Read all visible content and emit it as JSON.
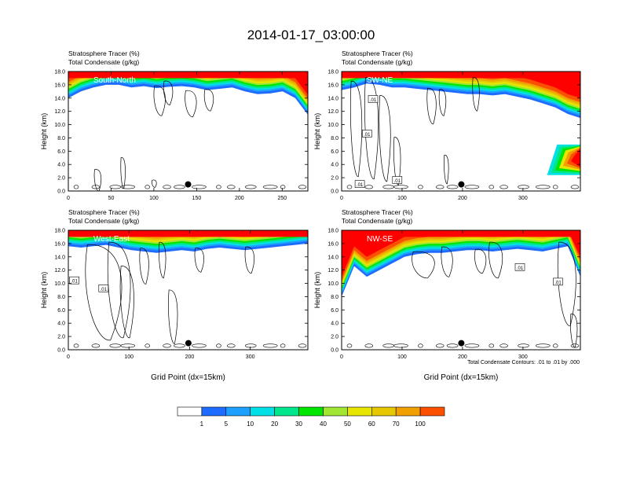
{
  "title": "2014-01-17_03:00:00",
  "panel_labels": [
    "Stratosphere Tracer   (%)",
    "Total Condensate   (g/kg)"
  ],
  "colors": {
    "levels": [
      "#ffffff",
      "#1e6cff",
      "#1ea0ff",
      "#00e0e6",
      "#00e68c",
      "#00e600",
      "#a0e632",
      "#e6e600",
      "#e6c800",
      "#f0a000",
      "#fa5000",
      "#ff0000"
    ],
    "contour": "#000000",
    "marker": "#000000"
  },
  "chart_data": [
    {
      "type": "heatmap",
      "title": "South-North",
      "ylabel": "Height (km)",
      "xlabel": "",
      "x_ticks": [
        "0",
        "50",
        "100",
        "150",
        "200",
        "250"
      ],
      "xlim": [
        0,
        280
      ],
      "y_ticks": [
        "0.0",
        "2.0",
        "4.0",
        "6.0",
        "8.0",
        "10.0",
        "12.0",
        "14.0",
        "16.0",
        "18.0"
      ],
      "ylim": [
        0,
        18
      ],
      "contour_labels": [],
      "marker": {
        "x": 140,
        "y": 1.0
      },
      "tracer_base_km": [
        14.0,
        15.0,
        15.6,
        16.0,
        16.0,
        15.6,
        15.8,
        15.5,
        15.7,
        15.8,
        15.6,
        15.2,
        15.4,
        15.6,
        15.0,
        14.6,
        14.7,
        15.0,
        14.0,
        11.5
      ],
      "tropo_tracer_plume": null
    },
    {
      "type": "heatmap",
      "title": "SW-NE",
      "ylabel": "Height (km)",
      "xlabel": "",
      "x_ticks": [
        "0",
        "100",
        "200",
        "300"
      ],
      "xlim": [
        0,
        395
      ],
      "y_ticks": [
        "0.0",
        "2.0",
        "4.0",
        "6.0",
        "8.0",
        "10.0",
        "12.0",
        "14.0",
        "16.0",
        "18.0"
      ],
      "ylim": [
        0,
        18
      ],
      "contour_labels": [
        {
          "text": ".01",
          "x": 52,
          "y": 13.8
        },
        {
          "text": ".01",
          "x": 42,
          "y": 8.6
        },
        {
          "text": ".01",
          "x": 30,
          "y": 1.0
        },
        {
          "text": ".01",
          "x": 92,
          "y": 1.6
        }
      ],
      "marker": {
        "x": 198,
        "y": 1.0
      },
      "tracer_base_km": [
        15.2,
        15.6,
        16.2,
        16.0,
        15.6,
        15.6,
        15.4,
        15.2,
        15.0,
        14.8,
        14.6,
        14.6,
        14.4,
        14.6,
        14.2,
        13.8,
        13.2,
        12.6,
        11.6,
        11.0
      ],
      "tropo_tracer_plume": {
        "x_start": 340,
        "x_end": 395,
        "y_low": 2.4,
        "y_high": 7.0
      }
    },
    {
      "type": "heatmap",
      "title": "West-East",
      "ylabel": "Height (km)",
      "xlabel": "Grid Point (dx=15km)",
      "x_ticks": [
        "0",
        "100",
        "200",
        "300"
      ],
      "xlim": [
        0,
        395
      ],
      "y_ticks": [
        "0.0",
        "2.0",
        "4.0",
        "6.0",
        "8.0",
        "10.0",
        "12.0",
        "14.0",
        "16.0",
        "18.0"
      ],
      "ylim": [
        0,
        18
      ],
      "contour_labels": [
        {
          "text": ".01",
          "x": 10,
          "y": 10.4
        },
        {
          "text": ".01",
          "x": 58,
          "y": 9.2
        }
      ],
      "marker": {
        "x": 198,
        "y": 1.0
      },
      "tracer_base_km": [
        15.6,
        15.4,
        15.6,
        15.8,
        15.4,
        15.0,
        14.8,
        14.6,
        14.8,
        15.0,
        14.8,
        15.2,
        15.4,
        15.2,
        15.0,
        15.2,
        15.4,
        15.6,
        15.8,
        16.0
      ],
      "tropo_tracer_plume": null
    },
    {
      "type": "heatmap",
      "title": "NW-SE",
      "ylabel": "Height (km)",
      "xlabel": "Grid Point (dx=15km)",
      "x_ticks": [
        "0",
        "100",
        "200",
        "300"
      ],
      "xlim": [
        0,
        395
      ],
      "y_ticks": [
        "0.0",
        "2.0",
        "4.0",
        "6.0",
        "8.0",
        "10.0",
        "12.0",
        "14.0",
        "16.0",
        "18.0"
      ],
      "ylim": [
        0,
        18
      ],
      "contour_labels": [
        {
          "text": ".01",
          "x": 295,
          "y": 12.4
        },
        {
          "text": ".01",
          "x": 358,
          "y": 10.2
        }
      ],
      "marker": {
        "x": 198,
        "y": 1.0
      },
      "tracer_base_km": [
        8.0,
        12.6,
        11.0,
        12.0,
        13.0,
        14.0,
        14.4,
        14.6,
        14.6,
        14.8,
        15.0,
        15.0,
        14.8,
        15.0,
        15.2,
        15.0,
        14.8,
        15.2,
        15.6,
        11.0
      ],
      "tropo_tracer_plume": null
    }
  ],
  "colorbar": {
    "labels": [
      "1",
      "5",
      "10",
      "20",
      "30",
      "40",
      "50",
      "60",
      "70",
      "100"
    ]
  },
  "footnote": "Total Condensate Contours: .01 to .01 by .000"
}
